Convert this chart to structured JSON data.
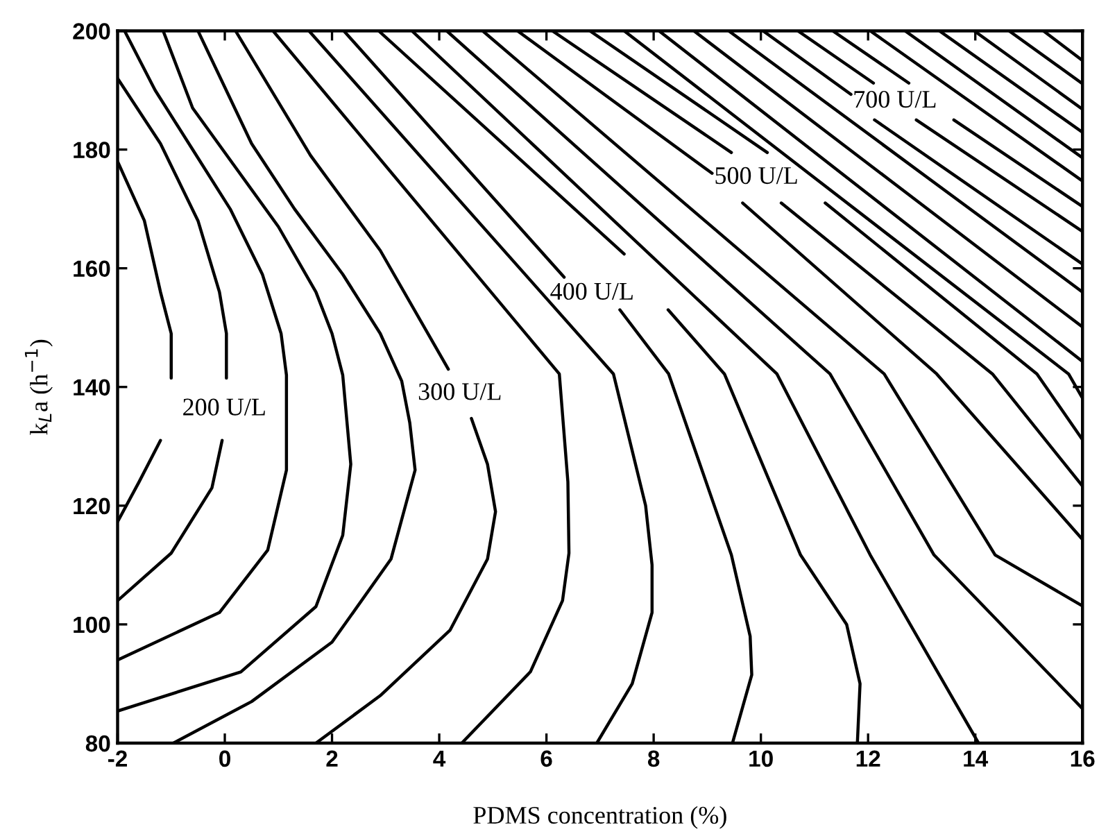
{
  "chart_data": {
    "type": "line",
    "xlabel": "PDMS concentration (%)",
    "ylabel": "k$_{L}$a (h$^{−1}$)",
    "xlim": [
      -2,
      16
    ],
    "ylim": [
      80,
      200
    ],
    "xticks": [
      -2,
      0,
      2,
      4,
      6,
      8,
      10,
      12,
      14,
      16
    ],
    "yticks": [
      80,
      100,
      120,
      140,
      160,
      180,
      200
    ],
    "series": [
      {
        "color": "#000000",
        "x": [
          -2,
          -1.6,
          -1.2,
          -1.1,
          -1.0,
          -1.0,
          -1.2,
          -1.5,
          -2
        ],
        "values": [
          117.3,
          124,
          131,
          null,
          141.5,
          149,
          156,
          168,
          178
        ]
      },
      {
        "name": "200 U/L",
        "color": "#000000",
        "x": [
          -2,
          -1.0,
          -0.24,
          -0.05,
          0,
          0.03,
          0.03,
          -0.1,
          -0.5,
          -1.2,
          -2
        ],
        "values": [
          104,
          112,
          123,
          131,
          null,
          141.5,
          149,
          156,
          168,
          181,
          192
        ]
      },
      {
        "color": "#000000",
        "x": [
          -2,
          -0.1,
          0.8,
          1.15,
          1.15,
          1.05,
          0.7,
          0.1,
          -0.6,
          -1.3,
          -1.87
        ],
        "values": [
          94,
          102,
          112.5,
          126,
          142,
          149,
          159,
          170,
          180,
          190,
          200
        ]
      },
      {
        "color": "#000000",
        "x": [
          -2,
          0.3,
          1.7,
          2.2,
          2.35,
          2.2,
          2.0,
          1.7,
          1.0,
          0.2,
          -0.6,
          -1.15
        ],
        "values": [
          85.4,
          92,
          103,
          115,
          127,
          142,
          149,
          156,
          167,
          177,
          187,
          200
        ]
      },
      {
        "color": "#000000",
        "x": [
          -0.96,
          0.5,
          2.0,
          3.1,
          3.55,
          3.45,
          3.3,
          2.9,
          2.2,
          1.3,
          0.5,
          -0.5
        ],
        "values": [
          80,
          87,
          97,
          111,
          126,
          134,
          141,
          149,
          159,
          170,
          181,
          200
        ]
      },
      {
        "name": "300 U/L",
        "color": "#000000",
        "x": [
          1.7,
          2.9,
          4.2,
          4.9,
          5.05,
          4.9,
          4.6,
          4.4,
          4.17,
          2.9,
          1.6,
          0.2
        ],
        "values": [
          80,
          88,
          99,
          111,
          119,
          127,
          134.7,
          null,
          143,
          163,
          179,
          200
        ]
      },
      {
        "color": "#000000",
        "x": [
          4.42,
          5.7,
          6.3,
          6.42,
          6.4,
          6.24,
          0.9
        ],
        "values": [
          80,
          92,
          104,
          112,
          124,
          142.2,
          200
        ]
      },
      {
        "color": "#000000",
        "x": [
          6.94,
          7.6,
          7.97,
          7.97,
          7.85,
          7.25,
          1.57
        ],
        "values": [
          80,
          90,
          102,
          110,
          120,
          142.2,
          200
        ]
      },
      {
        "name": "400 U/L",
        "color": "#000000",
        "x": [
          9.47,
          9.83,
          9.8,
          9.45,
          8.28,
          7.37,
          6.8,
          6.33,
          2.22
        ],
        "values": [
          80,
          91.5,
          98,
          111.7,
          142.2,
          153,
          null,
          158.5,
          200
        ]
      },
      {
        "color": "#000000",
        "x": [
          11.8,
          11.85,
          11.6,
          10.74,
          9.32,
          8.27,
          7.9,
          7.45,
          2.87
        ],
        "values": [
          80,
          90,
          100,
          111.7,
          142.2,
          153,
          null,
          162.4,
          200
        ]
      },
      {
        "color": "#000000",
        "x": [
          14.06,
          12.04,
          10.3,
          3.49
        ],
        "values": [
          80,
          111.7,
          142.2,
          200
        ]
      },
      {
        "color": "#000000",
        "x": [
          16,
          13.23,
          11.29,
          4.14
        ],
        "values": [
          85.8,
          111.7,
          142.2,
          200
        ]
      },
      {
        "color": "#000000",
        "x": [
          16,
          14.37,
          12.3,
          4.81
        ],
        "values": [
          103.1,
          111.7,
          142.2,
          200
        ]
      },
      {
        "color": "#000000",
        "x": [
          16,
          13.28,
          9.66,
          9.4,
          9.09,
          5.46
        ],
        "values": [
          114.3,
          142.2,
          171,
          null,
          176,
          200
        ]
      },
      {
        "name": "500 U/L",
        "color": "#000000",
        "x": [
          16,
          14.32,
          10.38,
          9.9,
          9.45,
          6.11
        ],
        "values": [
          123.3,
          142.2,
          171,
          null,
          179.5,
          200
        ]
      },
      {
        "color": "#000000",
        "x": [
          16,
          15.15,
          11.2,
          10.7,
          10.12,
          6.81
        ],
        "values": [
          131.1,
          142.2,
          171,
          null,
          179.5,
          200
        ]
      },
      {
        "color": "#000000",
        "x": [
          16,
          15.74,
          7.45
        ],
        "values": [
          138.1,
          142.2,
          200
        ]
      },
      {
        "color": "#000000",
        "x": [
          16,
          8.1
        ],
        "values": [
          144.3,
          200
        ]
      },
      {
        "color": "#000000",
        "x": [
          16,
          8.75
        ],
        "values": [
          150.1,
          200
        ]
      },
      {
        "color": "#000000",
        "x": [
          16,
          9.4
        ],
        "values": [
          156.0,
          200
        ]
      },
      {
        "color": "#000000",
        "x": [
          16,
          12.12,
          11.9,
          11.68,
          10.04
        ],
        "values": [
          160.7,
          185,
          null,
          189.3,
          200
        ]
      },
      {
        "name": "700 U/L",
        "color": "#000000",
        "x": [
          16,
          12.9,
          12.5,
          12.1,
          10.69
        ],
        "values": [
          166.2,
          185,
          null,
          191.2,
          200
        ]
      },
      {
        "color": "#000000",
        "x": [
          16,
          13.6,
          13.2,
          12.76,
          11.34
        ],
        "values": [
          170.4,
          185,
          null,
          191.2,
          200
        ]
      },
      {
        "color": "#000000",
        "x": [
          16,
          12.04
        ],
        "values": [
          174.7,
          200
        ]
      },
      {
        "color": "#000000",
        "x": [
          16,
          12.69
        ],
        "values": [
          178.6,
          200
        ]
      },
      {
        "color": "#000000",
        "x": [
          16,
          13.33
        ],
        "values": [
          182.9,
          200
        ]
      },
      {
        "color": "#000000",
        "x": [
          16,
          13.98
        ],
        "values": [
          186.8,
          200
        ]
      },
      {
        "color": "#000000",
        "x": [
          16,
          14.63
        ],
        "values": [
          191.1,
          200
        ]
      },
      {
        "color": "#000000",
        "x": [
          16,
          15.27
        ],
        "values": [
          195.0,
          200
        ]
      }
    ]
  }
}
